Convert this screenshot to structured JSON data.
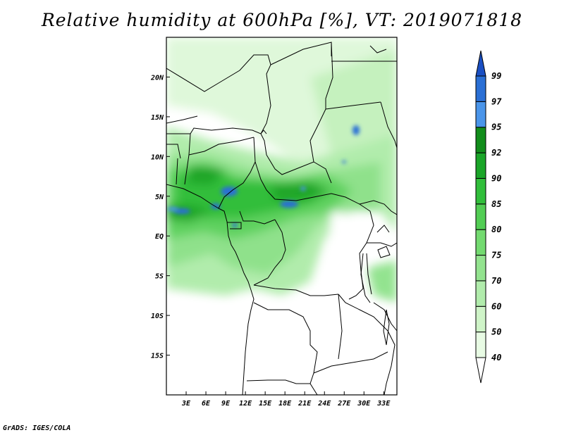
{
  "title": "Relative humidity at 600hPa [%], VT: 2019071818",
  "credit": "GrADS: IGES/COLA",
  "map": {
    "lon_range": [
      0,
      35
    ],
    "lat_range": [
      -20,
      25
    ],
    "lat_ticks": [
      "20N",
      "15N",
      "10N",
      "5N",
      "EQ",
      "5S",
      "10S",
      "15S"
    ],
    "lon_ticks": [
      "3E",
      "6E",
      "9E",
      "12E",
      "15E",
      "18E",
      "21E",
      "24E",
      "27E",
      "30E",
      "33E"
    ]
  },
  "legend": {
    "levels": [
      "40",
      "50",
      "60",
      "70",
      "75",
      "80",
      "85",
      "90",
      "92",
      "95",
      "97",
      "99"
    ],
    "colors": [
      "#ffffff",
      "#e8fbe4",
      "#cff4c8",
      "#b1ecac",
      "#93e38f",
      "#73da70",
      "#52cd54",
      "#31be3b",
      "#1aa528",
      "#128d1b",
      "#4a95ea",
      "#2a6fd5",
      "#1a4fc3"
    ]
  }
}
